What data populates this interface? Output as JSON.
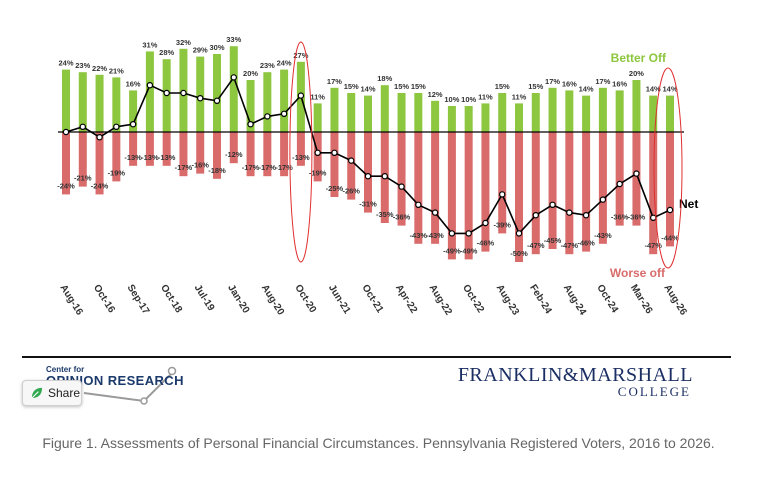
{
  "chart_data": {
    "type": "bar",
    "legend": {
      "positive": "Better Off",
      "negative": "Worse off",
      "net": "Net"
    },
    "x_tick_labels": [
      "Aug-16",
      "Oct-16",
      "Sep-17",
      "Oct-18",
      "Jul-19",
      "Jan-20",
      "Aug-20",
      "Oct-20",
      "Jun-21",
      "Oct-21",
      "Apr-22",
      "Aug-22",
      "Oct-22",
      "Aug-23",
      "Feb-24",
      "Aug-24",
      "Oct-24",
      "Mar-26",
      "Aug-26"
    ],
    "series": [
      {
        "name": "Better Off",
        "values": [
          24,
          23,
          22,
          21,
          16,
          31,
          28,
          32,
          29,
          30,
          33,
          20,
          23,
          24,
          27,
          11,
          17,
          15,
          14,
          18,
          15,
          15,
          12,
          10,
          10,
          11,
          15,
          11,
          15,
          17,
          16,
          14,
          17,
          16,
          20,
          14,
          14
        ]
      },
      {
        "name": "Worse off",
        "values": [
          -24,
          -21,
          -24,
          -19,
          -13,
          -13,
          -13,
          -17,
          -16,
          -18,
          -12,
          -17,
          -17,
          -17,
          -13,
          -19,
          -25,
          -26,
          -31,
          -35,
          -36,
          -43,
          -43,
          -49,
          -49,
          -46,
          -39,
          -50,
          -47,
          -45,
          -47,
          -46,
          -43,
          -36,
          -36,
          -47,
          -44
        ]
      },
      {
        "name": "Net",
        "values": [
          0,
          2,
          -2,
          2,
          3,
          18,
          15,
          15,
          13,
          12,
          21,
          3,
          6,
          7,
          14,
          -8,
          -8,
          -11,
          -17,
          -17,
          -21,
          -28,
          -31,
          -39,
          -39,
          -35,
          -24,
          -39,
          -32,
          -28,
          -31,
          -32,
          -26,
          -20,
          -16,
          -33,
          -30
        ]
      }
    ],
    "data_labels": {
      "positive": [
        "24%",
        "23%",
        "22%",
        "21%",
        "16%",
        "31%",
        "28%",
        "32%",
        "29%",
        "30%",
        "33%",
        "20%",
        "23%",
        "24%",
        "27%",
        "11%",
        "17%",
        "15%",
        "14%",
        "18%",
        "15%",
        "15%",
        "12%",
        "10%",
        "10%",
        "11%",
        "15%",
        "11%",
        "15%",
        "17%",
        "16%",
        "14%",
        "17%",
        "16%",
        "20%",
        "14%",
        "14%"
      ],
      "negative": [
        "-24%",
        "-21%",
        "-24%",
        "-19%",
        "-13%",
        "-13%",
        "-13%",
        "-17%",
        "-16%",
        "-18%",
        "-12%",
        "-17%",
        "-17%",
        "-17%",
        "-13%",
        "-19%",
        "-25%",
        "-26%",
        "-31%",
        "-35%",
        "-36%",
        "-43%",
        "-43%",
        "-49%",
        "-49%",
        "-46%",
        "-39%",
        "-50%",
        "-47%",
        "-45%",
        "-47%",
        "-46%",
        "-43%",
        "-36%",
        "-36%",
        "-47%",
        "-44%"
      ]
    },
    "ylim": [
      -55,
      40
    ],
    "grid": false,
    "colors": {
      "positive": "#8dc63f",
      "negative": "#d96b6b",
      "net_line": "#000000",
      "highlight": "#e03030"
    }
  },
  "logos": {
    "center_small": "Center for",
    "center_name": "OPINION RESEARCH",
    "college_name": "FRANKLIN&MARSHALL",
    "college_sub": "COLLEGE"
  },
  "share": {
    "label": "Share",
    "icon": "share-leaf-icon"
  },
  "caption": "Figure 1. Assessments of Personal Financial Circumstances. Pennsylvania Registered Voters, 2016 to 2026."
}
